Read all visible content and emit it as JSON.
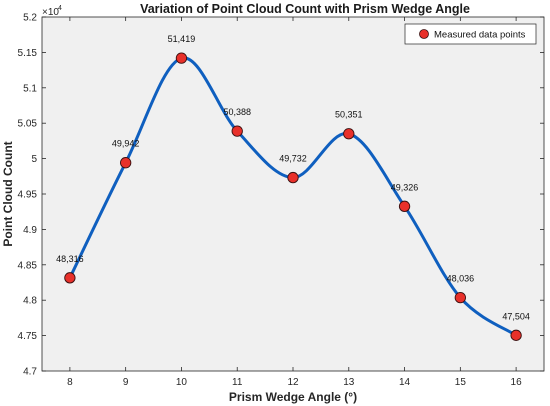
{
  "chart_data": {
    "type": "line",
    "title": "Variation of Point Cloud Count with Prism Wedge Angle",
    "xlabel": "Prism Wedge Angle (°)",
    "ylabel": "Point Cloud Count",
    "y_exponent_base": "×10",
    "y_exponent_power": "4",
    "xlim": [
      7.5,
      16.5
    ],
    "ylim": [
      4.7,
      5.2
    ],
    "x_ticks": [
      "8",
      "9",
      "10",
      "11",
      "12",
      "13",
      "14",
      "15",
      "16"
    ],
    "y_ticks": [
      "4.7",
      "4.75",
      "4.8",
      "4.85",
      "4.9",
      "4.95",
      "5",
      "5.05",
      "5.1",
      "5.15",
      "5.2"
    ],
    "x": [
      8,
      9,
      10,
      11,
      12,
      13,
      14,
      15,
      16
    ],
    "y": [
      4.8316,
      4.9942,
      5.1419,
      5.0388,
      4.9732,
      5.0351,
      4.9326,
      4.8036,
      4.7504
    ],
    "point_labels": [
      "48,316",
      "49,942",
      "51,419",
      "50,388",
      "49,732",
      "50,351",
      "49,326",
      "48,036",
      "47,504"
    ],
    "series": [
      {
        "name": "Measured data points"
      }
    ],
    "legend_position": "top-right",
    "grid": false,
    "colors": {
      "line": "#0f5fbf",
      "marker_fill": "#e8302a",
      "marker_edge": "#3a1010",
      "plot_bg": "#f0f0f0"
    }
  }
}
